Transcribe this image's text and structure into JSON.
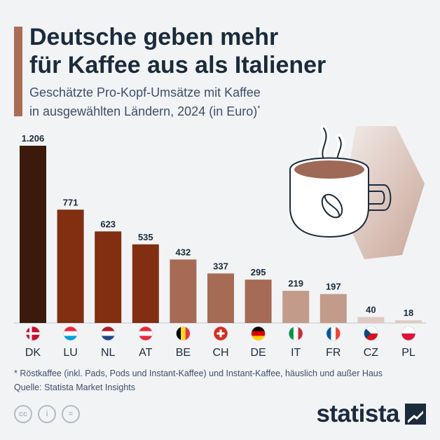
{
  "title_line1": "Deutsche geben mehr",
  "title_line2": "für Kaffee aus als Italiener",
  "subtitle_line1": "Geschätzte Pro-Kopf-Umsätze mit Kaffee",
  "subtitle_line2": "in ausgewählten Ländern, 2024 (in Euro)",
  "subtitle_mark": "*",
  "chart_data": {
    "type": "bar",
    "title": "Deutsche geben mehr für Kaffee aus als Italiener",
    "subtitle": "Geschätzte Pro-Kopf-Umsätze mit Kaffee in ausgewählten Ländern, 2024 (in Euro)",
    "xlabel": "",
    "ylabel": "Euro",
    "ylim": [
      0,
      1206
    ],
    "categories": [
      "DK",
      "LU",
      "NL",
      "AT",
      "BE",
      "CH",
      "DE",
      "IT",
      "FR",
      "CZ",
      "PL"
    ],
    "values": [
      1206,
      771,
      623,
      535,
      432,
      337,
      295,
      219,
      197,
      40,
      18
    ],
    "value_labels": [
      "1.206",
      "771",
      "623",
      "535",
      "432",
      "337",
      "295",
      "219",
      "197",
      "40",
      "18"
    ],
    "bar_colors": [
      "#3b1a0b",
      "#812e11",
      "#812e11",
      "#812e11",
      "#a66b55",
      "#a66b55",
      "#a66b55",
      "#c39b8b",
      "#c39b8b",
      "#dfc9c1",
      "#dfc9c1"
    ]
  },
  "flags": [
    "flag-denmark-icon",
    "flag-luxembourg-icon",
    "flag-netherlands-icon",
    "flag-austria-icon",
    "flag-belgium-icon",
    "flag-switzerland-icon",
    "flag-germany-icon",
    "flag-italy-icon",
    "flag-france-icon",
    "flag-czechia-icon",
    "flag-poland-icon"
  ],
  "footnote": "* Röstkaffee (inkl. Pads, Pods und Instant-Kaffee) und Instant-Kaffee, häuslich und außer Haus",
  "source": "Quelle: Statista Market Insights",
  "license_icons": [
    "cc-icon",
    "attribution-icon",
    "no-derivatives-icon"
  ],
  "license_labels": [
    "cc",
    "i",
    "="
  ],
  "logo": "statista",
  "colors": {
    "title": "#1b2b3c",
    "accent": "#a96c55",
    "background": "#f2f3f5"
  }
}
